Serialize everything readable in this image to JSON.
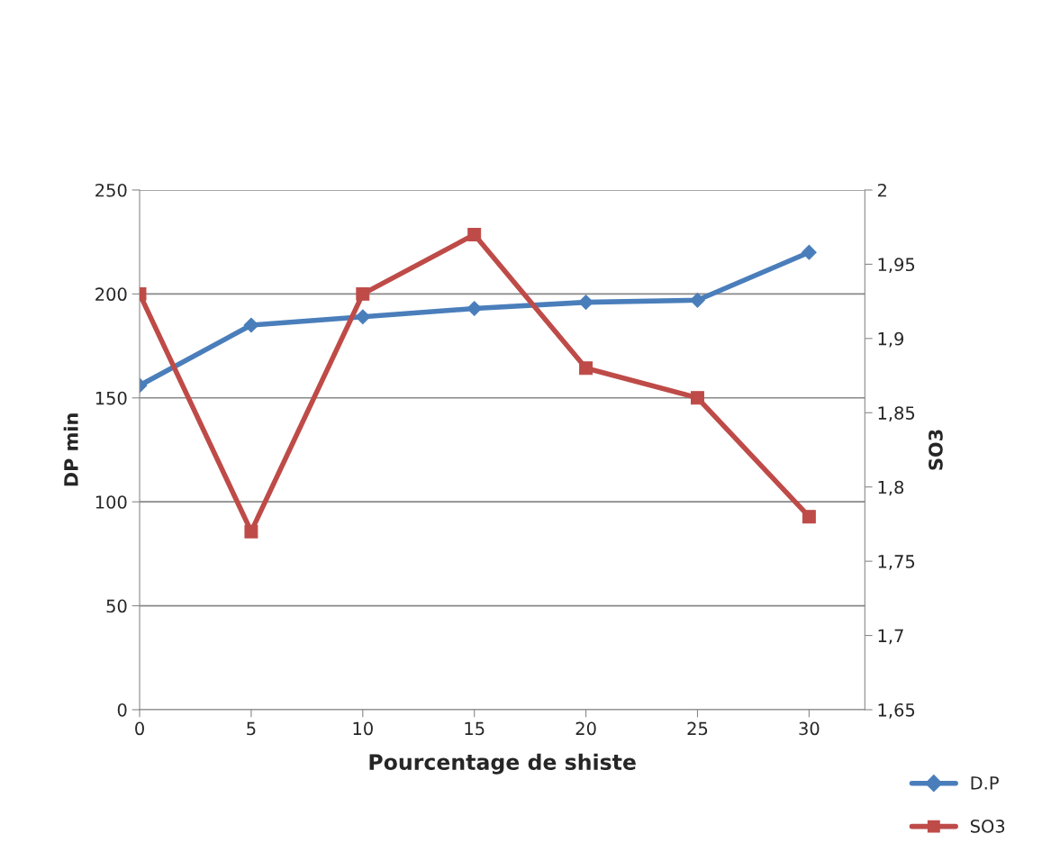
{
  "chart_data": {
    "type": "line",
    "xlabel": "Pourcentage de shiste",
    "ylabel": "DP min",
    "y2label": "SO3",
    "x": [
      0,
      5,
      10,
      15,
      20,
      25,
      30
    ],
    "xlim": [
      0,
      32.5
    ],
    "xticks": [
      0,
      5,
      10,
      15,
      20,
      25,
      30
    ],
    "ylim": [
      0,
      250
    ],
    "yticks": [
      0,
      50,
      100,
      150,
      200,
      250
    ],
    "y2lim": [
      1.65,
      2
    ],
    "y2ticks": [
      {
        "value": 1.65,
        "label": "1,65"
      },
      {
        "value": 1.7,
        "label": "1,7"
      },
      {
        "value": 1.75,
        "label": "1,75"
      },
      {
        "value": 1.8,
        "label": "1,8"
      },
      {
        "value": 1.85,
        "label": "1,85"
      },
      {
        "value": 1.9,
        "label": "1,9"
      },
      {
        "value": 1.95,
        "label": "1,95"
      },
      {
        "value": 2,
        "label": "2"
      }
    ],
    "grid": "y",
    "legend": "bottom right",
    "line_style": "solid",
    "series": [
      {
        "name": "D.P",
        "color": "#4a7ebb",
        "marker": "diamond",
        "values": [
          156,
          185,
          189,
          193,
          196,
          197,
          220
        ]
      },
      {
        "name": "SO3",
        "color": "#be4b48",
        "marker": "square",
        "axis": "y2",
        "values": [
          1.93,
          1.77,
          1.93,
          1.97,
          1.88,
          1.86,
          1.78
        ]
      }
    ]
  }
}
